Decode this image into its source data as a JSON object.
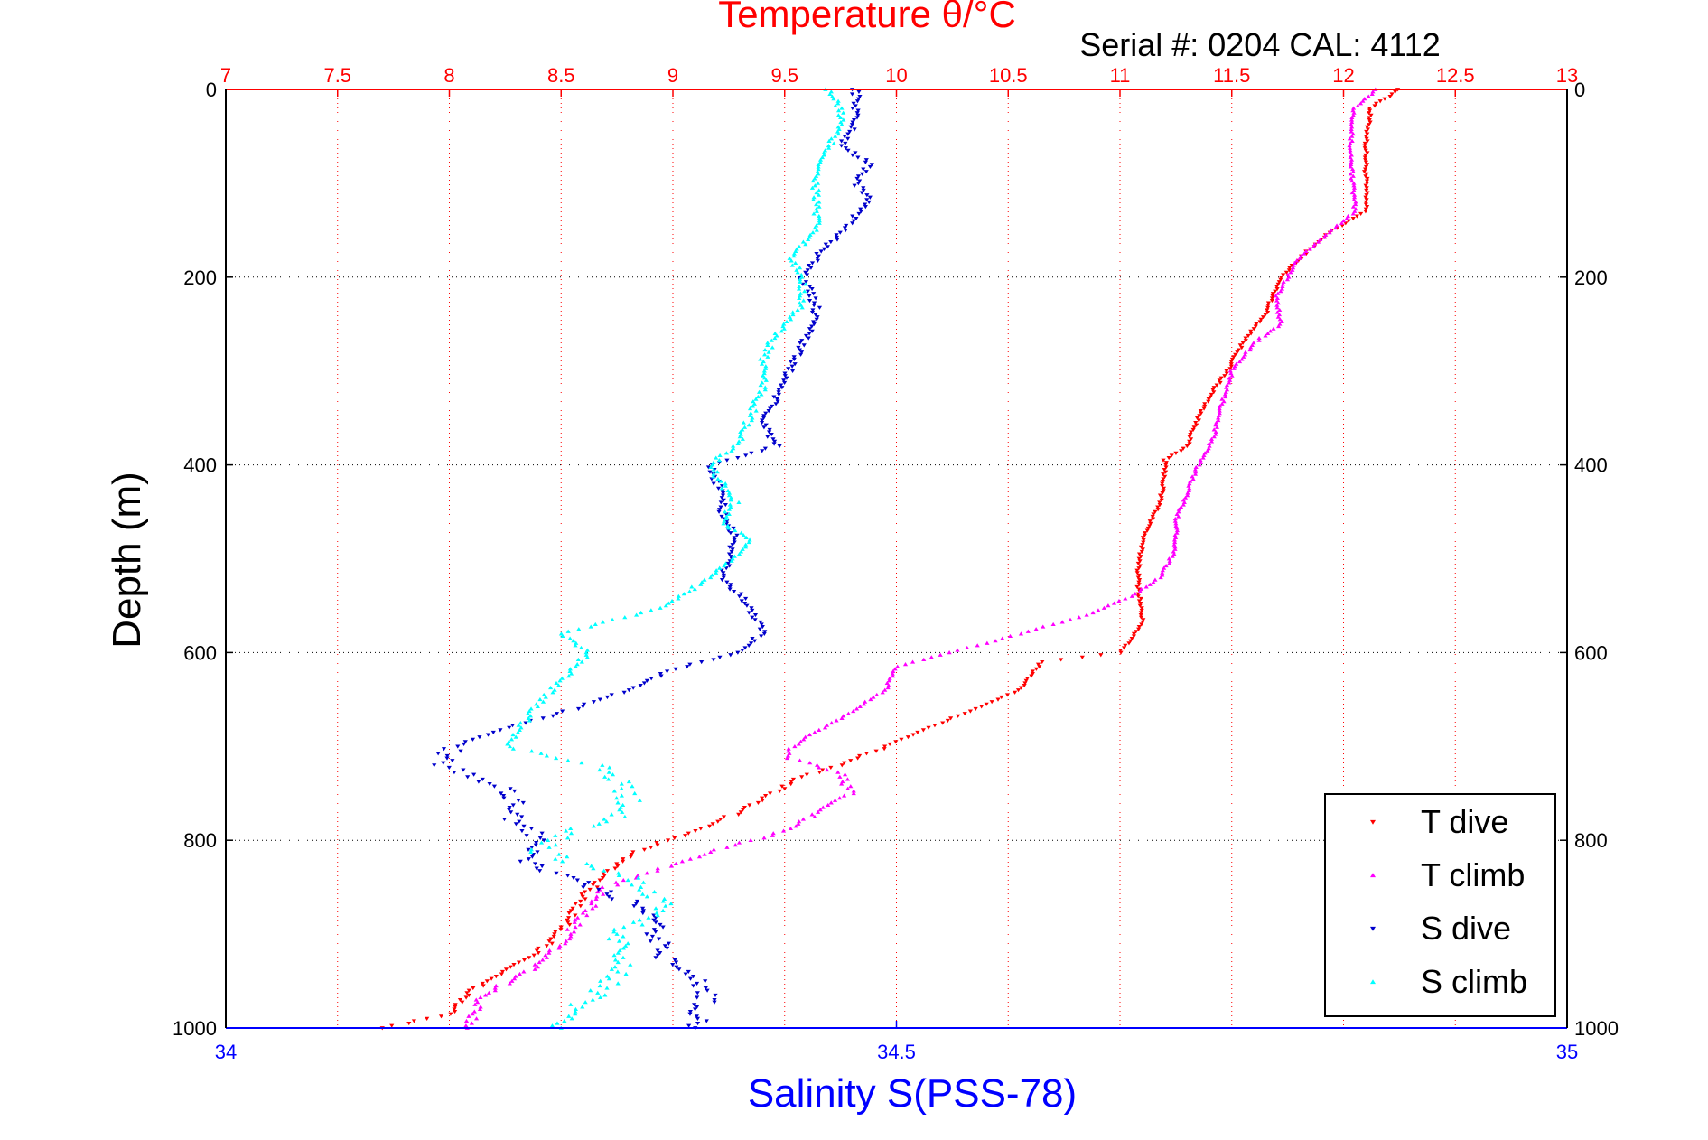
{
  "chart_data": {
    "type": "scatter",
    "title": "Temperature θ/°C",
    "annotation": "Serial #: 0204  CAL: 4112",
    "xlabel_top": "",
    "xlabel_bottom": "Salinity S(PSS-78)",
    "ylabel": "Depth (m)",
    "top_axis": {
      "range": [
        7,
        13
      ],
      "ticks": [
        "7",
        "7.5",
        "8",
        "8.5",
        "9",
        "9.5",
        "10",
        "10.5",
        "11",
        "11.5",
        "12",
        "12.5",
        "13"
      ],
      "color": "#ff0000"
    },
    "bottom_axis": {
      "range": [
        34,
        35
      ],
      "ticks": [
        "34",
        "34.5",
        "35"
      ],
      "color": "#0000ff"
    },
    "y_axis": {
      "range": [
        0,
        1000
      ],
      "reversed": true,
      "ticks": [
        "0",
        "200",
        "400",
        "600",
        "800",
        "1000"
      ]
    },
    "grid": true,
    "legend_position": "bottom-right",
    "series": [
      {
        "name": "T dive",
        "axis": "top",
        "color": "#ff0000",
        "marker": "down-triangle",
        "points": [
          [
            12.25,
            0
          ],
          [
            12.12,
            20
          ],
          [
            12.1,
            60
          ],
          [
            12.1,
            130
          ],
          [
            11.95,
            150
          ],
          [
            11.85,
            170
          ],
          [
            11.72,
            200
          ],
          [
            11.65,
            240
          ],
          [
            11.55,
            270
          ],
          [
            11.48,
            300
          ],
          [
            11.42,
            320
          ],
          [
            11.35,
            350
          ],
          [
            11.3,
            380
          ],
          [
            11.2,
            395
          ],
          [
            11.2,
            410
          ],
          [
            11.18,
            440
          ],
          [
            11.1,
            480
          ],
          [
            11.08,
            520
          ],
          [
            11.1,
            570
          ],
          [
            11.0,
            600
          ],
          [
            10.65,
            610
          ],
          [
            10.55,
            640
          ],
          [
            10.25,
            670
          ],
          [
            10.05,
            690
          ],
          [
            9.85,
            710
          ],
          [
            9.75,
            720
          ],
          [
            9.55,
            735
          ],
          [
            9.45,
            750
          ],
          [
            9.3,
            770
          ],
          [
            9.1,
            790
          ],
          [
            8.85,
            810
          ],
          [
            8.72,
            830
          ],
          [
            8.6,
            860
          ],
          [
            8.52,
            890
          ],
          [
            8.4,
            920
          ],
          [
            8.2,
            945
          ],
          [
            8.1,
            960
          ],
          [
            8.0,
            985
          ],
          [
            7.7,
            1000
          ]
        ]
      },
      {
        "name": "T climb",
        "axis": "top",
        "color": "#ff00ff",
        "marker": "up-triangle",
        "points": [
          [
            12.15,
            0
          ],
          [
            12.05,
            20
          ],
          [
            12.03,
            60
          ],
          [
            12.05,
            130
          ],
          [
            11.9,
            160
          ],
          [
            11.8,
            180
          ],
          [
            11.7,
            220
          ],
          [
            11.72,
            250
          ],
          [
            11.6,
            270
          ],
          [
            11.5,
            300
          ],
          [
            11.45,
            340
          ],
          [
            11.42,
            370
          ],
          [
            11.35,
            400
          ],
          [
            11.3,
            430
          ],
          [
            11.25,
            460
          ],
          [
            11.25,
            490
          ],
          [
            11.18,
            520
          ],
          [
            11.05,
            540
          ],
          [
            10.85,
            560
          ],
          [
            10.4,
            590
          ],
          [
            10.0,
            615
          ],
          [
            9.95,
            640
          ],
          [
            9.75,
            670
          ],
          [
            9.6,
            690
          ],
          [
            9.5,
            710
          ],
          [
            9.75,
            730
          ],
          [
            9.8,
            750
          ],
          [
            9.65,
            770
          ],
          [
            9.5,
            790
          ],
          [
            9.2,
            810
          ],
          [
            8.95,
            830
          ],
          [
            8.7,
            850
          ],
          [
            8.6,
            880
          ],
          [
            8.5,
            910
          ],
          [
            8.35,
            940
          ],
          [
            8.15,
            965
          ],
          [
            8.1,
            990
          ],
          [
            8.08,
            1000
          ]
        ]
      },
      {
        "name": "S dive",
        "axis": "bottom",
        "color": "#0000cc",
        "marker": "down-triangle",
        "points": [
          [
            34.47,
            0
          ],
          [
            34.47,
            30
          ],
          [
            34.46,
            60
          ],
          [
            34.48,
            80
          ],
          [
            34.47,
            100
          ],
          [
            34.48,
            120
          ],
          [
            34.46,
            150
          ],
          [
            34.44,
            180
          ],
          [
            34.43,
            200
          ],
          [
            34.44,
            230
          ],
          [
            34.44,
            250
          ],
          [
            34.43,
            270
          ],
          [
            34.42,
            300
          ],
          [
            34.41,
            330
          ],
          [
            34.4,
            350
          ],
          [
            34.41,
            380
          ],
          [
            34.36,
            400
          ],
          [
            34.37,
            430
          ],
          [
            34.37,
            450
          ],
          [
            34.38,
            480
          ],
          [
            34.37,
            520
          ],
          [
            34.39,
            550
          ],
          [
            34.4,
            580
          ],
          [
            34.38,
            600
          ],
          [
            34.33,
            620
          ],
          [
            34.3,
            640
          ],
          [
            34.26,
            660
          ],
          [
            34.21,
            680
          ],
          [
            34.17,
            700
          ],
          [
            34.16,
            720
          ],
          [
            34.2,
            740
          ],
          [
            34.22,
            760
          ],
          [
            34.21,
            780
          ],
          [
            34.24,
            800
          ],
          [
            34.22,
            820
          ],
          [
            34.27,
            850
          ],
          [
            34.31,
            870
          ],
          [
            34.32,
            900
          ],
          [
            34.33,
            930
          ],
          [
            34.36,
            960
          ],
          [
            34.35,
            1000
          ]
        ]
      },
      {
        "name": "S climb",
        "axis": "bottom",
        "color": "#00ffff",
        "marker": "up-triangle",
        "points": [
          [
            34.45,
            0
          ],
          [
            34.46,
            30
          ],
          [
            34.45,
            60
          ],
          [
            34.44,
            90
          ],
          [
            34.44,
            120
          ],
          [
            34.44,
            150
          ],
          [
            34.42,
            180
          ],
          [
            34.43,
            200
          ],
          [
            34.43,
            230
          ],
          [
            34.41,
            260
          ],
          [
            34.4,
            290
          ],
          [
            34.4,
            320
          ],
          [
            34.39,
            350
          ],
          [
            34.38,
            380
          ],
          [
            34.36,
            400
          ],
          [
            34.37,
            420
          ],
          [
            34.38,
            440
          ],
          [
            34.37,
            460
          ],
          [
            34.39,
            480
          ],
          [
            34.37,
            510
          ],
          [
            34.33,
            550
          ],
          [
            34.25,
            580
          ],
          [
            34.27,
            600
          ],
          [
            34.25,
            630
          ],
          [
            34.23,
            660
          ],
          [
            34.22,
            680
          ],
          [
            34.21,
            700
          ],
          [
            34.28,
            720
          ],
          [
            34.3,
            750
          ],
          [
            34.3,
            770
          ],
          [
            34.26,
            790
          ],
          [
            34.23,
            810
          ],
          [
            34.3,
            840
          ],
          [
            34.33,
            870
          ],
          [
            34.29,
            900
          ],
          [
            34.3,
            930
          ],
          [
            34.28,
            960
          ],
          [
            34.25,
            990
          ],
          [
            34.25,
            1000
          ]
        ]
      }
    ],
    "legend": [
      "T dive",
      "T climb",
      "S dive",
      "S climb"
    ]
  }
}
